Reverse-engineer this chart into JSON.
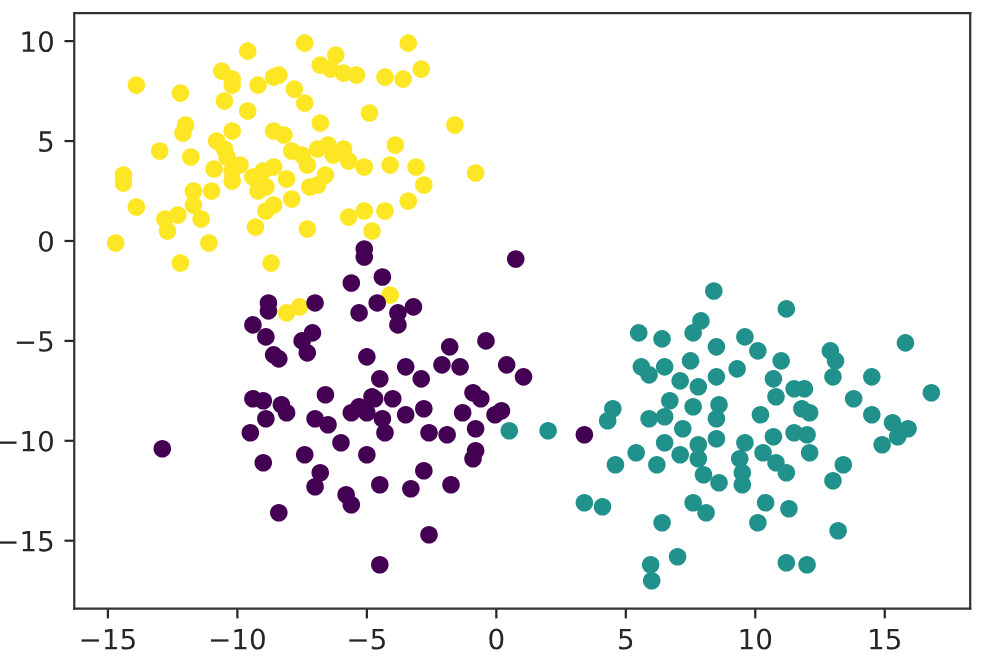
{
  "chart_data": {
    "type": "scatter",
    "xlim": [
      -16.3,
      18.3
    ],
    "ylim": [
      -18.4,
      11.4
    ],
    "xticks": [
      {
        "value": -15,
        "label": "−15"
      },
      {
        "value": -10,
        "label": "−10"
      },
      {
        "value": -5,
        "label": "−5"
      },
      0,
      5,
      10,
      15
    ],
    "yticks": [
      {
        "value": -15,
        "label": "−15"
      },
      {
        "value": -10,
        "label": "−10"
      },
      {
        "value": -5,
        "label": "−5"
      },
      0,
      5,
      10
    ],
    "grid": false,
    "legend": false,
    "marker": "circle",
    "series": [
      {
        "color": "#fde725",
        "x": [
          -13.9,
          -12.2,
          -9.6,
          -7.4,
          -6.2,
          -6.8,
          -6.4,
          -5.9,
          -5.4,
          -3.4,
          -2.9,
          -4.3,
          -3.6,
          -10.6,
          -10.2,
          -10.2,
          -10.5,
          -9.2,
          -8.6,
          -8.4,
          -7.8,
          -7.4,
          -9.6,
          -6.8,
          -4.9,
          -1.6,
          -12.0,
          -12.1,
          -13.0,
          -11.8,
          -10.8,
          -10.2,
          -10.5,
          -8.6,
          -8.2,
          -7.9,
          -7.5,
          -6.9,
          -6.5,
          -5.9,
          -5.7,
          -5.1,
          -3.9,
          -4.1,
          -3.1,
          -2.8,
          -3.4,
          -4.3,
          -5.1,
          -5.7,
          -4.8,
          -7.3,
          -8.7,
          -11.1,
          -12.2,
          -14.7,
          -13.9,
          -12.8,
          -12.7,
          -12.3,
          -11.4,
          -11.7,
          -11.7,
          -11.0,
          -10.9,
          -10.2,
          -10.2,
          -9.4,
          -9.0,
          -8.9,
          -9.2,
          -8.6,
          -7.9,
          -8.6,
          -8.9,
          -9.3,
          -7.2,
          -6.9,
          -6.6,
          -0.8,
          -14.4,
          -14.4,
          -10.4,
          -9.9,
          -8.1,
          -7.3,
          -6.3,
          -8.1,
          -7.6,
          -4.1
        ],
        "values": [
          7.8,
          7.4,
          9.5,
          9.9,
          9.3,
          8.8,
          8.6,
          8.4,
          8.3,
          9.9,
          8.6,
          8.2,
          8.1,
          8.5,
          8.1,
          7.8,
          7.0,
          7.8,
          8.2,
          8.3,
          7.6,
          6.9,
          6.5,
          5.9,
          6.4,
          5.8,
          5.8,
          5.4,
          4.5,
          4.2,
          5.0,
          5.5,
          4.6,
          5.5,
          5.3,
          4.5,
          4.3,
          4.6,
          4.8,
          4.6,
          4.0,
          3.7,
          4.8,
          3.8,
          3.7,
          2.8,
          2.0,
          1.5,
          1.5,
          1.2,
          0.5,
          0.6,
          -1.1,
          -0.1,
          -1.1,
          -0.1,
          1.7,
          1.1,
          0.5,
          1.3,
          1.1,
          1.8,
          2.5,
          2.5,
          3.6,
          3.5,
          3.0,
          3.2,
          3.5,
          2.7,
          2.5,
          3.7,
          2.1,
          1.8,
          1.5,
          0.7,
          2.7,
          2.8,
          3.3,
          3.4,
          3.3,
          2.9,
          4.2,
          3.8,
          3.1,
          3.8,
          4.3,
          -3.6,
          -3.3,
          -2.7
        ]
      },
      {
        "color": "#440154",
        "x": [
          -5.1,
          -5.1,
          0.75,
          -4.4,
          -5.6,
          -8.8,
          -8.8,
          -7.0,
          -9.4,
          -8.9,
          -8.6,
          -8.4,
          -7.5,
          -7.1,
          -7.3,
          -5.3,
          -4.6,
          -3.8,
          -3.2,
          -3.8,
          -5.0,
          -3.5,
          -2.9,
          -2.1,
          -1.8,
          -1.4,
          -0.4,
          0.4,
          1.05,
          -4.5,
          -4.8,
          -4.0,
          -9.4,
          -9.0,
          -8.3,
          -8.9,
          -8.1,
          -9.5,
          -6.6,
          -7.0,
          -6.5,
          -5.6,
          -5.3,
          -5.0,
          -4.7,
          -4.4,
          -4.3,
          -3.5,
          -2.8,
          -2.6,
          -1.9,
          -1.3,
          -0.9,
          -0.6,
          -0.8,
          -0.05,
          0.2,
          -6.0,
          -5.0,
          -7.4,
          -9.0,
          -12.9,
          -6.8,
          -7.0,
          -5.8,
          -5.6,
          -4.5,
          -3.3,
          -2.8,
          -1.75,
          -0.8,
          -0.9,
          -8.4,
          -2.6,
          -4.5,
          3.4
        ],
        "values": [
          -0.4,
          -0.8,
          -0.9,
          -1.8,
          -2.1,
          -3.1,
          -3.5,
          -3.1,
          -4.2,
          -4.8,
          -5.7,
          -5.9,
          -5.0,
          -4.6,
          -5.6,
          -3.6,
          -3.1,
          -3.6,
          -3.3,
          -4.2,
          -5.8,
          -6.3,
          -6.9,
          -6.2,
          -5.3,
          -6.3,
          -5.0,
          -6.2,
          -6.8,
          -6.9,
          -7.8,
          -7.9,
          -7.9,
          -8.0,
          -8.2,
          -8.9,
          -8.6,
          -9.6,
          -7.7,
          -8.9,
          -9.2,
          -8.6,
          -8.3,
          -8.6,
          -7.9,
          -8.9,
          -9.6,
          -8.7,
          -8.4,
          -9.6,
          -9.7,
          -8.6,
          -7.6,
          -7.9,
          -9.4,
          -8.7,
          -8.5,
          -10.1,
          -10.7,
          -10.7,
          -11.1,
          -10.4,
          -11.6,
          -12.3,
          -12.7,
          -13.2,
          -12.2,
          -12.4,
          -11.5,
          -12.2,
          -10.5,
          -10.9,
          -13.6,
          -14.7,
          -16.2,
          -9.7
        ]
      },
      {
        "color": "#21918c",
        "x": [
          0.5,
          2.0,
          8.4,
          11.2,
          5.5,
          6.4,
          7.9,
          7.6,
          8.5,
          9.6,
          10.1,
          12.9,
          13.1,
          15.8,
          5.6,
          5.9,
          6.5,
          7.5,
          7.1,
          7.8,
          8.5,
          9.3,
          11.0,
          10.7,
          10.8,
          11.5,
          11.9,
          13.0,
          14.5,
          16.8,
          13.8,
          4.5,
          4.3,
          5.9,
          6.7,
          6.5,
          7.2,
          7.6,
          8.6,
          8.5,
          10.2,
          11.8,
          12.1,
          11.5,
          12.0,
          14.5,
          15.3,
          15.9,
          14.9,
          15.5,
          6.5,
          7.1,
          7.8,
          8.5,
          9.6,
          10.7,
          5.4,
          4.6,
          6.2,
          7.8,
          8.0,
          8.6,
          9.4,
          9.5,
          9.5,
          10.3,
          10.8,
          11.2,
          12.1,
          13.4,
          13.0,
          3.4,
          4.1,
          7.6,
          8.1,
          10.4,
          11.3,
          6.4,
          10.1,
          13.2,
          7.0,
          5.96,
          6.0,
          11.2,
          12.0
        ],
        "values": [
          -9.5,
          -9.5,
          -2.5,
          -3.4,
          -4.6,
          -4.9,
          -4.0,
          -4.6,
          -5.3,
          -4.8,
          -5.5,
          -5.5,
          -6.0,
          -5.1,
          -6.3,
          -6.7,
          -6.3,
          -6.0,
          -7.0,
          -7.3,
          -6.8,
          -6.4,
          -6.0,
          -6.9,
          -7.8,
          -7.4,
          -7.4,
          -6.8,
          -6.8,
          -7.6,
          -7.9,
          -8.4,
          -9.0,
          -8.9,
          -8.0,
          -8.8,
          -9.4,
          -8.3,
          -8.2,
          -8.9,
          -8.7,
          -8.4,
          -8.6,
          -9.6,
          -9.7,
          -8.7,
          -9.1,
          -9.4,
          -10.2,
          -9.8,
          -10.1,
          -10.7,
          -10.2,
          -9.9,
          -10.1,
          -9.8,
          -10.6,
          -11.2,
          -11.2,
          -10.9,
          -11.7,
          -12.1,
          -10.9,
          -11.6,
          -12.2,
          -10.6,
          -11.1,
          -11.6,
          -10.6,
          -11.2,
          -12.0,
          -13.1,
          -13.3,
          -13.1,
          -13.6,
          -13.1,
          -13.4,
          -14.1,
          -14.1,
          -14.5,
          -15.8,
          -16.2,
          -17.0,
          -16.1,
          -16.2
        ]
      }
    ]
  }
}
